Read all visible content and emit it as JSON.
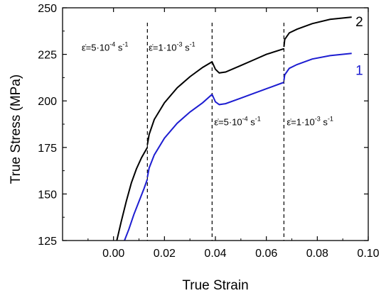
{
  "chart_data": {
    "type": "line",
    "title": "",
    "xlabel": "True Strain",
    "ylabel": "True Stress (MPa)",
    "xlim": [
      -0.02,
      0.1
    ],
    "ylim": [
      125,
      250
    ],
    "x_ticks": [
      "0.00",
      "0.02",
      "0.04",
      "0.06",
      "0.08",
      "0.10"
    ],
    "x_tick_values": [
      0.0,
      0.02,
      0.04,
      0.06,
      0.08,
      0.1
    ],
    "y_ticks": [
      "125",
      "150",
      "175",
      "200",
      "225",
      "250"
    ],
    "y_tick_values": [
      125,
      150,
      175,
      200,
      225,
      250
    ],
    "grid": false,
    "legend": "none",
    "vlines": [
      0.0133,
      0.0387,
      0.0669
    ],
    "annotations": [
      {
        "base": "ε̇=5·10",
        "exp": "-4",
        "unit": "s",
        "unit_exp": "-1",
        "x": -0.0125,
        "y": 227
      },
      {
        "base": "ε̇=1·10",
        "exp": "-3",
        "unit": "s",
        "unit_exp": "-1",
        "x": 0.0138,
        "y": 227
      },
      {
        "base": "ε̇=5·10",
        "exp": "-4",
        "unit": "s",
        "unit_exp": "-1",
        "x": 0.0395,
        "y": 187
      },
      {
        "base": "ε̇=1·10",
        "exp": "-3",
        "unit": "s",
        "unit_exp": "-1",
        "x": 0.068,
        "y": 187
      }
    ],
    "series": [
      {
        "name": "2",
        "color": "#000000",
        "label_at": [
          0.095,
          240
        ],
        "segments": [
          [
            [
              0.0013,
              125
            ],
            [
              0.003,
              135
            ],
            [
              0.005,
              146
            ],
            [
              0.007,
              156
            ],
            [
              0.009,
              163.5
            ],
            [
              0.011,
              169.5
            ],
            [
              0.0133,
              175
            ]
          ],
          [
            [
              0.0133,
              176.5
            ],
            [
              0.014,
              182
            ],
            [
              0.016,
              190
            ],
            [
              0.02,
              199
            ],
            [
              0.025,
              207
            ],
            [
              0.03,
              213
            ],
            [
              0.035,
              218
            ],
            [
              0.0387,
              221
            ]
          ],
          [
            [
              0.0387,
              221
            ],
            [
              0.04,
              217
            ],
            [
              0.0415,
              215
            ],
            [
              0.044,
              215.5
            ],
            [
              0.05,
              219
            ],
            [
              0.055,
              222
            ],
            [
              0.06,
              225
            ],
            [
              0.0669,
              228
            ]
          ],
          [
            [
              0.0669,
              229
            ],
            [
              0.0672,
              233
            ],
            [
              0.069,
              236.5
            ],
            [
              0.072,
              238.5
            ],
            [
              0.078,
              241.5
            ],
            [
              0.085,
              243.8
            ],
            [
              0.0935,
              245
            ]
          ]
        ]
      },
      {
        "name": "1",
        "color": "#1d1dd1",
        "label_at": [
          0.095,
          214
        ],
        "segments": [
          [
            [
              0.0043,
              125
            ],
            [
              0.006,
              131
            ],
            [
              0.008,
              139
            ],
            [
              0.01,
              146
            ],
            [
              0.012,
              153
            ],
            [
              0.0133,
              158
            ]
          ],
          [
            [
              0.0133,
              159
            ],
            [
              0.014,
              164
            ],
            [
              0.016,
              171
            ],
            [
              0.02,
              180
            ],
            [
              0.025,
              188
            ],
            [
              0.03,
              194
            ],
            [
              0.035,
              199
            ],
            [
              0.0387,
              203.5
            ]
          ],
          [
            [
              0.0387,
              203.5
            ],
            [
              0.04,
              199.5
            ],
            [
              0.0415,
              198
            ],
            [
              0.044,
              198.5
            ],
            [
              0.05,
              201.5
            ],
            [
              0.055,
              204
            ],
            [
              0.06,
              206.5
            ],
            [
              0.0669,
              210
            ]
          ],
          [
            [
              0.0669,
              211
            ],
            [
              0.0672,
              214
            ],
            [
              0.069,
              217.5
            ],
            [
              0.072,
              219.5
            ],
            [
              0.078,
              222.5
            ],
            [
              0.085,
              224.3
            ],
            [
              0.0935,
              225.5
            ]
          ]
        ]
      }
    ]
  }
}
